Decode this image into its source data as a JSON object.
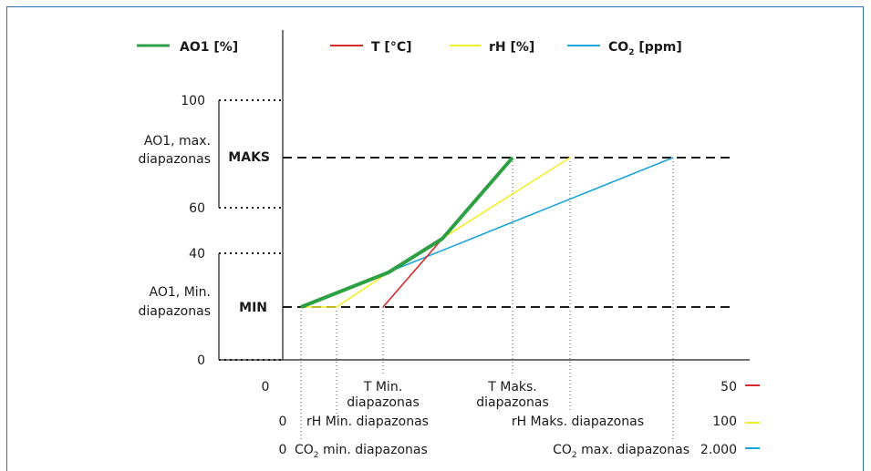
{
  "legend": {
    "ao1": {
      "label": "AO1 [%]",
      "color": "#2ea044"
    },
    "t": {
      "label": "T [°C]",
      "color": "#d62b2b"
    },
    "rh": {
      "label": "rH [%]",
      "color": "#f2ee2a"
    },
    "co2": {
      "label_main": "CO",
      "label_sub": "2",
      "label_tail": " [ppm]",
      "color": "#1aa3dc"
    }
  },
  "y_axis": {
    "ticks": [
      "100",
      "60",
      "40",
      "0"
    ],
    "level_max": "MAKS",
    "level_min": "MIN",
    "range_max_label": [
      "AO1, max.",
      "diapazonas"
    ],
    "range_min_label": [
      "AO1, Min.",
      "diapazonas"
    ]
  },
  "x_axis": {
    "origin": "0",
    "t_min": [
      "T Min.",
      "diapazonas"
    ],
    "t_max": [
      "T Maks.",
      "diapazonas"
    ],
    "t_end": "50",
    "rh_start": "0",
    "rh_min": "rH Min. diapazonas",
    "rh_max": "rH Maks. diapazonas",
    "rh_end": "100",
    "co2_start": "0",
    "co2_min": {
      "main": "CO",
      "sub": "2",
      "tail": " min. diapazonas"
    },
    "co2_max": {
      "main": "CO",
      "sub": "2",
      "tail": " max. diapazonas"
    },
    "co2_end": "2.000"
  },
  "chart_data": {
    "type": "line",
    "y_levels": {
      "min": "MIN",
      "max": "MAKS"
    },
    "series": [
      {
        "name": "AO1 [%]",
        "color": "#2ea044"
      },
      {
        "name": "T [°C]",
        "color": "#d62b2b"
      },
      {
        "name": "rH [%]",
        "color": "#f2ee2a"
      },
      {
        "name": "CO2 [ppm]",
        "color": "#1aa3dc"
      }
    ]
  }
}
